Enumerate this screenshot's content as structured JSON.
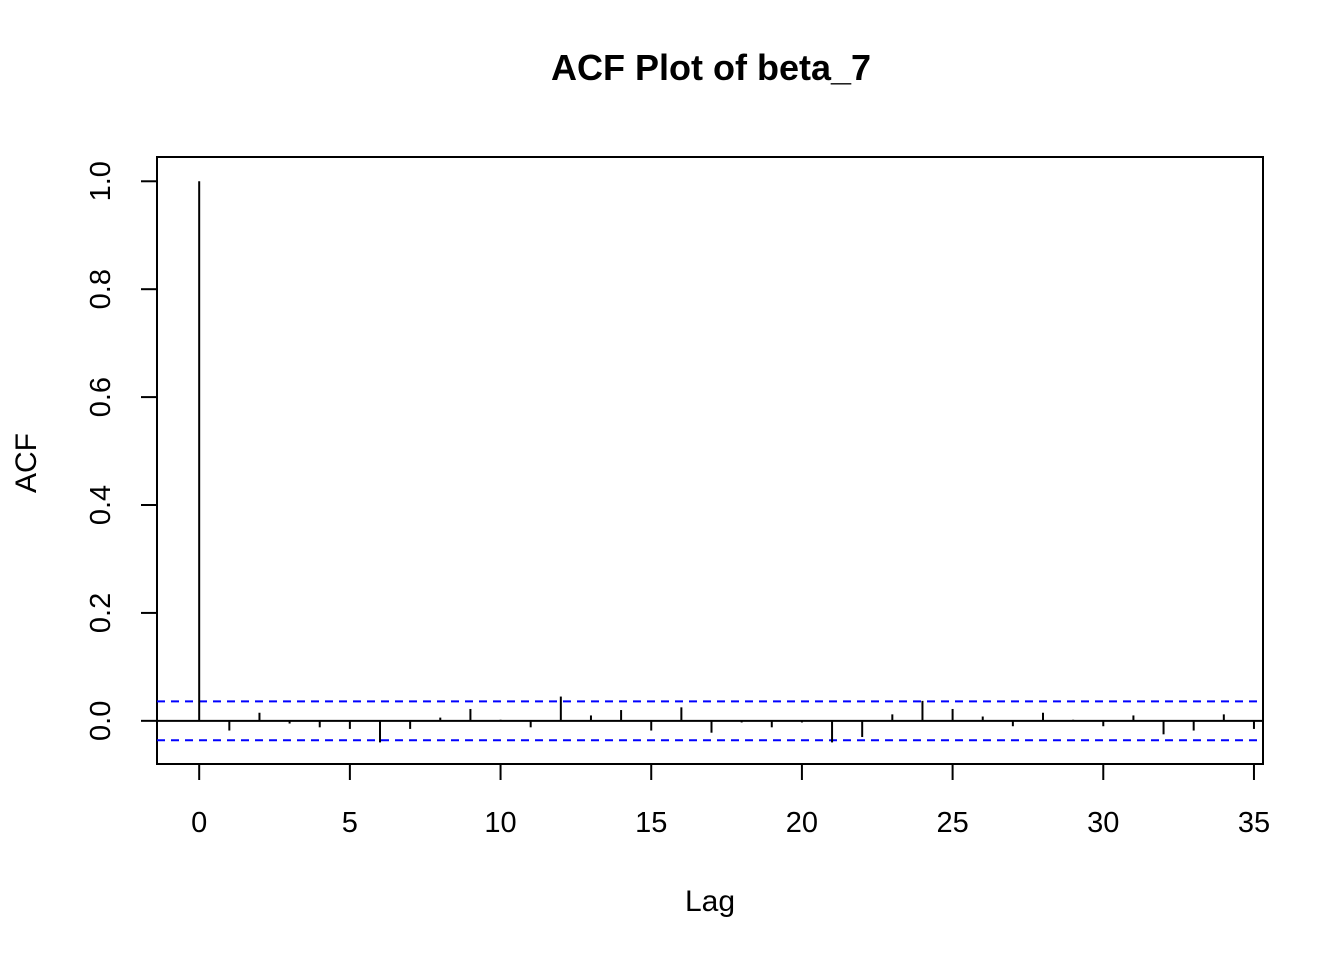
{
  "chart_data": {
    "type": "bar",
    "title": "ACF Plot of  beta_7",
    "xlabel": "Lag",
    "ylabel": "ACF",
    "xlim": [
      -1.4,
      35.3
    ],
    "ylim": [
      -0.08,
      1.045
    ],
    "x_ticks": [
      "0",
      "5",
      "10",
      "15",
      "20",
      "25",
      "30",
      "35"
    ],
    "y_ticks": [
      "0.0",
      "0.2",
      "0.4",
      "0.6",
      "0.8",
      "1.0"
    ],
    "lags": [
      0,
      1,
      2,
      3,
      4,
      5,
      6,
      7,
      8,
      9,
      10,
      11,
      12,
      13,
      14,
      15,
      16,
      17,
      18,
      19,
      20,
      21,
      22,
      23,
      24,
      25,
      26,
      27,
      28,
      29,
      30,
      31,
      32,
      33,
      34,
      35
    ],
    "acf": [
      1.0,
      -0.018,
      0.015,
      -0.005,
      -0.012,
      -0.015,
      -0.04,
      -0.015,
      0.006,
      0.022,
      0.002,
      -0.012,
      0.045,
      0.01,
      0.02,
      -0.018,
      0.025,
      -0.022,
      -0.003,
      -0.012,
      -0.003,
      -0.04,
      -0.03,
      0.012,
      0.037,
      0.022,
      0.008,
      -0.01,
      0.015,
      0.002,
      -0.01,
      0.01,
      -0.025,
      -0.018,
      0.012,
      -0.015
    ],
    "confidence_bound": 0.036,
    "colors": {
      "bars": "#000000",
      "confidence_lines": "#0000ff",
      "zero_line": "#000000"
    }
  }
}
